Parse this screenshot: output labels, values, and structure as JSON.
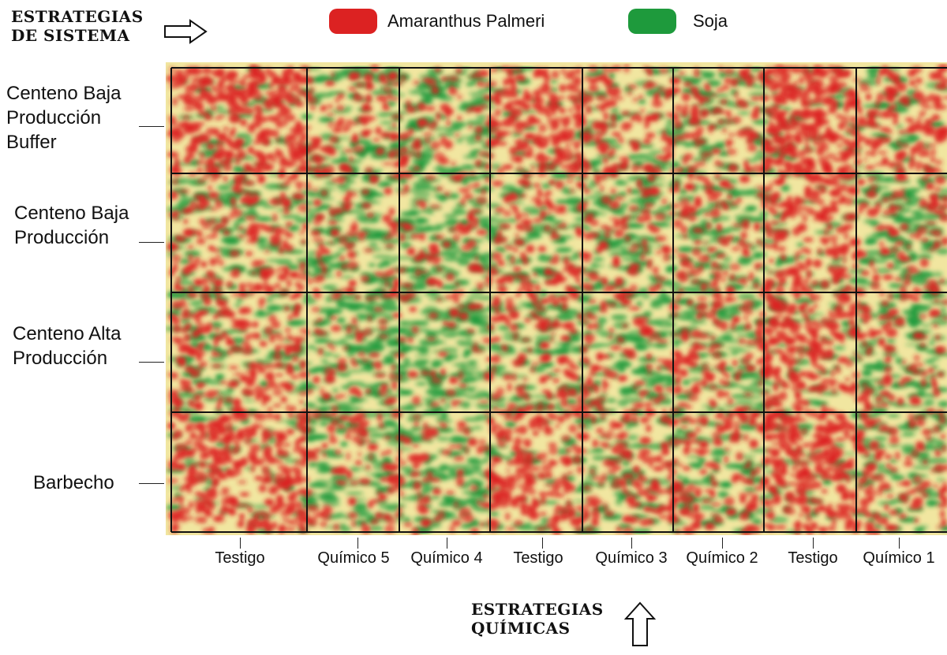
{
  "system_title": [
    "ESTRATEGIAS",
    "DE SISTEMA"
  ],
  "chemical_title": [
    "ESTRATEGIAS",
    "QUÍMICAS"
  ],
  "legend": [
    {
      "label": "Amaranthus Palmeri",
      "color": "#dc2222"
    },
    {
      "label": "Soja",
      "color": "#1e9a3c"
    }
  ],
  "rows": [
    {
      "lines": [
        "Centeno Baja",
        "Producción",
        "Buffer"
      ]
    },
    {
      "lines": [
        "Centeno Baja",
        "Producción"
      ]
    },
    {
      "lines": [
        "Centeno Alta",
        "Producción"
      ]
    },
    {
      "lines": [
        "Barbecho"
      ]
    }
  ],
  "columns": [
    "Testigo",
    "Químico 5",
    "Químico 4",
    "Testigo",
    "Químico 3",
    "Químico 2",
    "Testigo",
    "Químico 1"
  ],
  "colors": {
    "weed": "#dc2222",
    "crop": "#1e9a3c",
    "background": "#f1e6a0",
    "grid": "#111111"
  },
  "weed_density": [
    [
      0.85,
      0.35,
      0.25,
      0.75,
      0.45,
      0.4,
      0.95,
      0.55
    ],
    [
      0.4,
      0.25,
      0.25,
      0.4,
      0.3,
      0.35,
      0.6,
      0.3
    ],
    [
      0.45,
      0.2,
      0.15,
      0.35,
      0.3,
      0.35,
      0.65,
      0.3
    ],
    [
      0.7,
      0.3,
      0.25,
      0.6,
      0.4,
      0.4,
      0.8,
      0.4
    ]
  ]
}
